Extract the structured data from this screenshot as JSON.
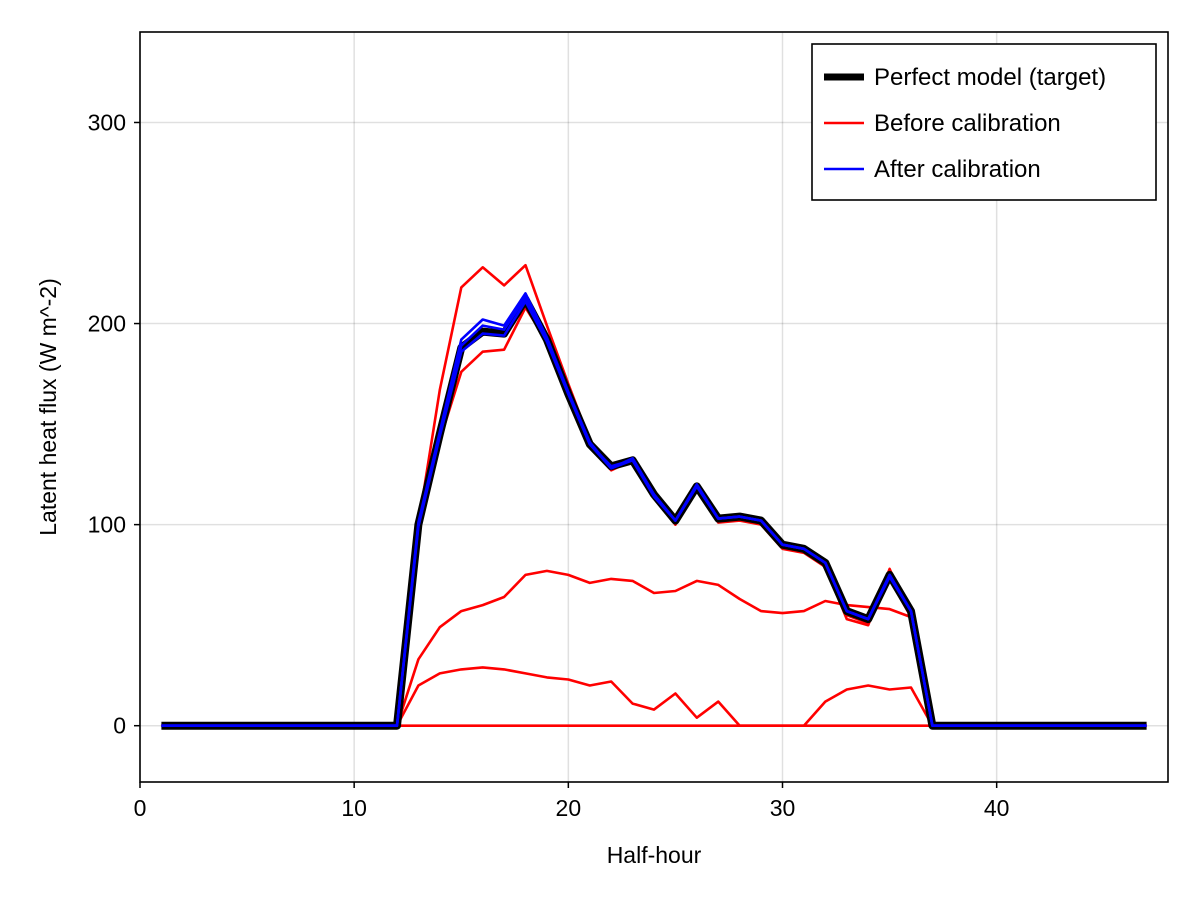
{
  "chart_data": {
    "type": "line",
    "title": "",
    "xlabel": "Half-hour",
    "ylabel": "Latent heat flux (W m^-2)",
    "xlim": [
      0,
      48
    ],
    "ylim": [
      -28,
      345
    ],
    "xticks": [
      0,
      10,
      20,
      30,
      40
    ],
    "yticks": [
      0,
      100,
      200,
      300
    ],
    "grid": true,
    "legend": "top-right",
    "colors": {
      "target": "#000000",
      "before": "#ff0000",
      "after": "#0000ff"
    },
    "legend_entries": [
      {
        "key": "target",
        "label": "Perfect model (target)"
      },
      {
        "key": "before",
        "label": "Before calibration"
      },
      {
        "key": "after",
        "label": "After calibration"
      }
    ],
    "x": [
      1,
      2,
      3,
      4,
      5,
      6,
      7,
      8,
      9,
      10,
      11,
      12,
      13,
      14,
      15,
      16,
      17,
      18,
      19,
      20,
      21,
      22,
      23,
      24,
      25,
      26,
      27,
      28,
      29,
      30,
      31,
      32,
      33,
      34,
      35,
      36,
      37,
      38,
      39,
      40,
      41,
      42,
      43,
      44,
      45,
      46,
      47
    ],
    "series": [
      {
        "group": "before",
        "values": [
          0,
          0,
          0,
          0,
          0,
          0,
          0,
          0,
          0,
          0,
          0,
          0,
          100,
          167,
          218,
          228,
          219,
          229,
          199,
          170,
          142,
          128,
          133,
          114,
          100,
          120,
          101,
          102,
          100,
          88,
          86,
          79,
          53,
          50,
          78,
          54,
          0,
          0,
          0,
          0,
          0,
          0,
          0,
          0,
          0,
          0,
          0
        ]
      },
      {
        "group": "before",
        "values": [
          0,
          0,
          0,
          0,
          0,
          0,
          0,
          0,
          0,
          0,
          0,
          0,
          95,
          142,
          176,
          186,
          187,
          208,
          191,
          165,
          139,
          127,
          132,
          113,
          100,
          117,
          102,
          103,
          101,
          89,
          87,
          79,
          55,
          51,
          73,
          54,
          0,
          0,
          0,
          0,
          0,
          0,
          0,
          0,
          0,
          0,
          0
        ]
      },
      {
        "group": "before",
        "values": [
          0,
          0,
          0,
          0,
          0,
          0,
          0,
          0,
          0,
          0,
          0,
          0,
          33,
          49,
          57,
          60,
          64,
          75,
          77,
          75,
          71,
          73,
          72,
          66,
          67,
          72,
          70,
          63,
          57,
          56,
          57,
          62,
          60,
          59,
          58,
          54,
          0,
          0,
          0,
          0,
          0,
          0,
          0,
          0,
          0,
          0,
          0
        ]
      },
      {
        "group": "before",
        "values": [
          0,
          0,
          0,
          0,
          0,
          0,
          0,
          0,
          0,
          0,
          0,
          0,
          20,
          26,
          28,
          29,
          28,
          26,
          24,
          23,
          20,
          22,
          11,
          8,
          16,
          4,
          12,
          0,
          0,
          0,
          0,
          12,
          18,
          20,
          18,
          19,
          0,
          0,
          0,
          0,
          0,
          0,
          0,
          0,
          0,
          0,
          0
        ]
      },
      {
        "group": "before",
        "values": [
          0,
          0,
          0,
          0,
          0,
          0,
          0,
          0,
          0,
          0,
          0,
          0,
          0,
          0,
          0,
          0,
          0,
          0,
          0,
          0,
          0,
          0,
          0,
          0,
          0,
          0,
          0,
          0,
          0,
          0,
          0,
          0,
          0,
          0,
          0,
          0,
          0,
          0,
          0,
          0,
          0,
          0,
          0,
          0,
          0,
          0,
          0
        ]
      },
      {
        "group": "target",
        "values": [
          0,
          0,
          0,
          0,
          0,
          0,
          0,
          0,
          0,
          0,
          0,
          0,
          100,
          145,
          188,
          196,
          195,
          212,
          192,
          165,
          140,
          129,
          132,
          115,
          102,
          119,
          103,
          104,
          102,
          90,
          88,
          81,
          57,
          53,
          75,
          57,
          0,
          0,
          0,
          0,
          0,
          0,
          0,
          0,
          0,
          0,
          0
        ]
      },
      {
        "group": "after",
        "values": [
          0,
          0,
          0,
          0,
          0,
          0,
          0,
          0,
          0,
          0,
          0,
          0,
          101,
          146,
          192,
          202,
          199,
          215,
          193,
          166,
          141,
          128,
          133,
          115,
          102,
          120,
          103,
          104,
          102,
          90,
          88,
          81,
          57,
          53,
          75,
          57,
          0,
          0,
          0,
          0,
          0,
          0,
          0,
          0,
          0,
          0,
          0
        ]
      },
      {
        "group": "after",
        "values": [
          0,
          0,
          0,
          0,
          0,
          0,
          0,
          0,
          0,
          0,
          0,
          0,
          100,
          145,
          189,
          199,
          197,
          213,
          192,
          165,
          140,
          129,
          132,
          115,
          102,
          119,
          103,
          104,
          102,
          90,
          88,
          81,
          57,
          53,
          75,
          57,
          0,
          0,
          0,
          0,
          0,
          0,
          0,
          0,
          0,
          0,
          0
        ]
      },
      {
        "group": "after",
        "values": [
          0,
          0,
          0,
          0,
          0,
          0,
          0,
          0,
          0,
          0,
          0,
          0,
          99,
          144,
          186,
          195,
          194,
          211,
          191,
          165,
          140,
          128,
          132,
          114,
          102,
          119,
          103,
          104,
          102,
          90,
          88,
          81,
          57,
          53,
          74,
          57,
          0,
          0,
          0,
          0,
          0,
          0,
          0,
          0,
          0,
          0,
          0
        ]
      }
    ]
  }
}
